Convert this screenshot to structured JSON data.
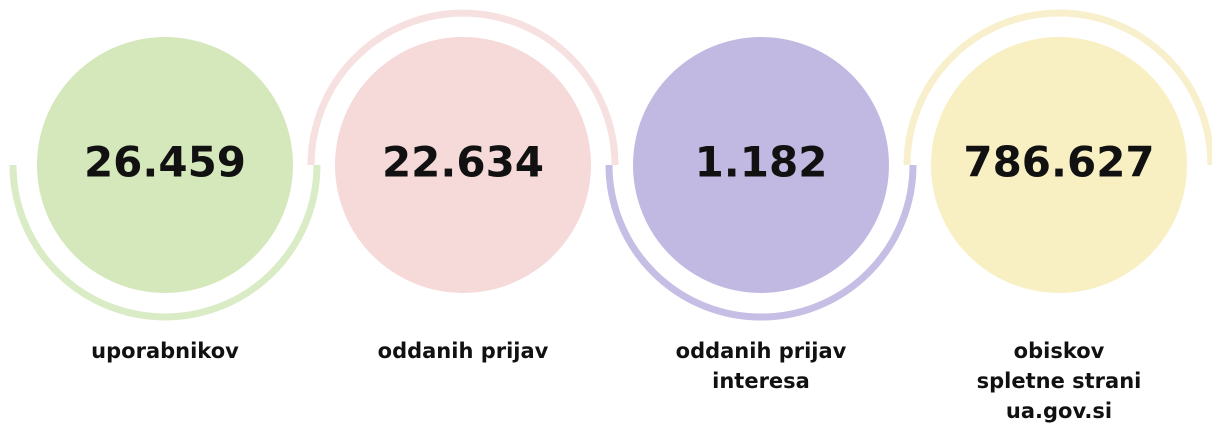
{
  "stats": [
    {
      "value": "26.459",
      "label": [
        "uporabnikov"
      ]
    },
    {
      "value": "22.634",
      "label": [
        "oddanih prijav"
      ]
    },
    {
      "value": "1.182",
      "label": [
        "oddanih prijav",
        "interesa"
      ]
    },
    {
      "value": "786.627",
      "label": [
        "obiskov",
        "spletne strani",
        "ua.gov.si"
      ]
    }
  ]
}
